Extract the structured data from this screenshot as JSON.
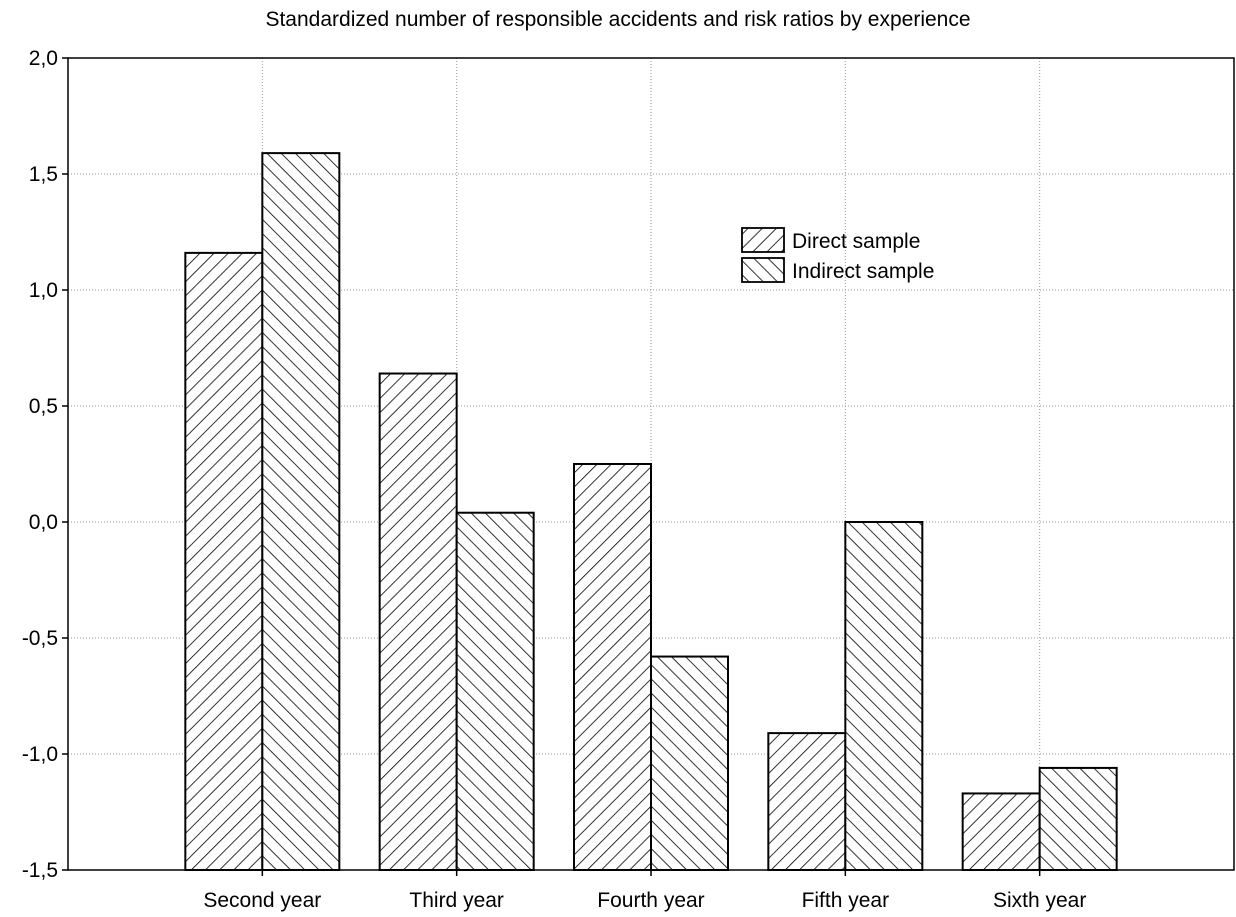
{
  "chart_data": {
    "type": "bar",
    "title": "Standardized number of responsible accidents and risk ratios by experience",
    "xlabel": "",
    "ylabel": "",
    "categories": [
      "Second year",
      "Third year",
      "Fourth year",
      "Fifth year",
      "Sixth year"
    ],
    "series": [
      {
        "name": "Direct sample",
        "values": [
          1.16,
          0.64,
          0.25,
          -0.91,
          -1.17
        ],
        "pattern": "diagonal-forward"
      },
      {
        "name": "Indirect sample",
        "values": [
          1.59,
          0.04,
          -0.58,
          0.0,
          -1.06
        ],
        "pattern": "diagonal-backward"
      }
    ],
    "ylim": [
      -1.5,
      2.0
    ],
    "yticks": [
      "2,0",
      "1,5",
      "1,0",
      "0,5",
      "0,0",
      "-0,5",
      "-1,0",
      "-1,5"
    ],
    "ytick_values": [
      2.0,
      1.5,
      1.0,
      0.5,
      0.0,
      -0.5,
      -1.0,
      -1.5
    ],
    "grid": true,
    "legend_position": "upper-right-center",
    "colors": {
      "bar_fill": "#ffffff",
      "bar_stroke": "#000000",
      "hatch": "#000000",
      "grid": "#999999"
    }
  }
}
